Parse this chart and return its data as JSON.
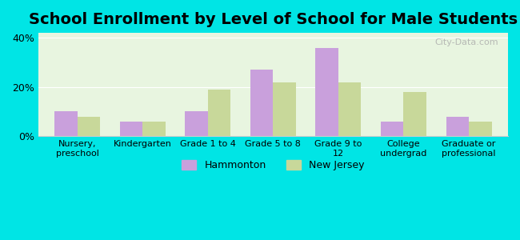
{
  "title": "School Enrollment by Level of School for Male Students",
  "categories": [
    "Nursery,\npreschool",
    "Kindergarten",
    "Grade 1 to 4",
    "Grade 5 to 8",
    "Grade 9 to\n12",
    "College\nundergrad",
    "Graduate or\nprofessional"
  ],
  "hammonton": [
    10.0,
    6.0,
    10.0,
    27.0,
    36.0,
    6.0,
    8.0
  ],
  "new_jersey": [
    8.0,
    6.0,
    19.0,
    22.0,
    22.0,
    18.0,
    6.0
  ],
  "hammonton_color": "#c9a0dc",
  "nj_color": "#c8d89a",
  "background_outer": "#00e5e5",
  "background_inner": "#e8f5e0",
  "yticks": [
    0,
    20,
    40
  ],
  "ylim": [
    0,
    42
  ],
  "ylabel_format": "%",
  "legend_hammonton": "Hammonton",
  "legend_nj": "New Jersey",
  "title_fontsize": 14,
  "bar_width": 0.35
}
